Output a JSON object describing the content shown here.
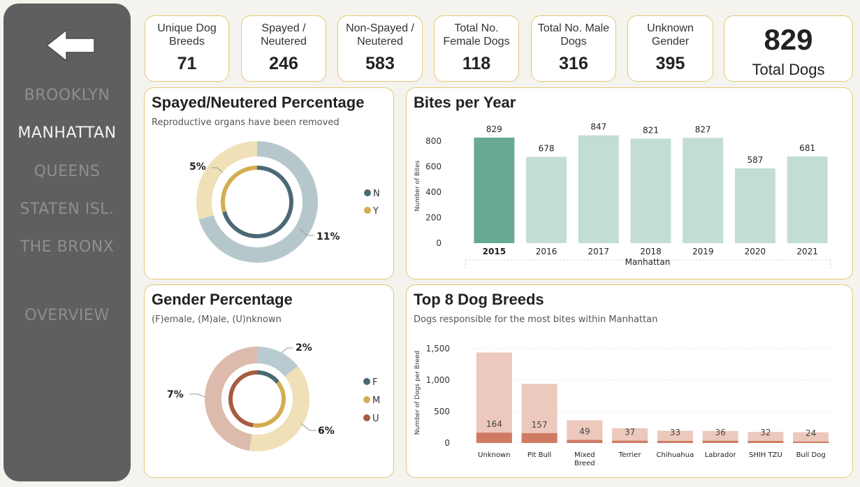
{
  "nav": {
    "back_icon": "left-arrow-icon",
    "items": [
      {
        "label": "BROOKLYN",
        "active": false
      },
      {
        "label": "MANHATTAN",
        "active": true
      },
      {
        "label": "QUEENS",
        "active": false
      },
      {
        "label": "STATEN ISL.",
        "active": false
      },
      {
        "label": "THE BRONX",
        "active": false
      },
      {
        "label": "OVERVIEW",
        "active": false
      }
    ]
  },
  "kpis": [
    {
      "label": "Unique Dog Breeds",
      "value": "71"
    },
    {
      "label": "Spayed / Neutered",
      "value": "246"
    },
    {
      "label": "Non-Spayed / Neutered",
      "value": "583"
    },
    {
      "label": "Total No. Female Dogs",
      "value": "118"
    },
    {
      "label": "Total No. Male Dogs",
      "value": "316"
    },
    {
      "label": "Unknown Gender",
      "value": "395"
    }
  ],
  "total": {
    "value": "829",
    "label": "Total Dogs"
  },
  "colors": {
    "accent_border": "#e2c978",
    "bar_highlight": "#67a995",
    "bar_normal": "#c2ddd5",
    "breed_total": "#ecc8bd",
    "breed_count": "#cf7b64",
    "donut_n": "#4b6875",
    "donut_y": "#d3ae50",
    "donut_u": "#a65c41"
  },
  "chart_data": [
    {
      "type": "pie",
      "title": "Spayed/Neutered Percentage",
      "subtitle": "Reproductive organs have been removed",
      "categories": [
        "N",
        "Y"
      ],
      "values": [
        583,
        246
      ],
      "annotations": [
        "11%",
        "5%"
      ]
    },
    {
      "type": "bar",
      "title": "Bites per Year",
      "categories": [
        "2015",
        "2016",
        "2017",
        "2018",
        "2019",
        "2020",
        "2021"
      ],
      "values": [
        829,
        678,
        847,
        821,
        827,
        587,
        681
      ],
      "data_labels": [
        "829",
        "678",
        "847",
        "821",
        "827",
        "587",
        "681"
      ],
      "highlight": "2015",
      "xlabel": "Manhattan",
      "ylabel": "Number of Bites",
      "yticks": [
        "0",
        "200",
        "400",
        "600",
        "800"
      ],
      "ylim": [
        0,
        900
      ]
    },
    {
      "type": "pie",
      "title": "Gender Percentage",
      "subtitle": "(F)emale, (M)ale, (U)nknown",
      "categories": [
        "F",
        "M",
        "U"
      ],
      "values": [
        118,
        316,
        395
      ],
      "annotations": [
        "2%",
        "6%",
        "7%"
      ]
    },
    {
      "type": "bar",
      "title": "Top 8 Dog Breeds",
      "subtitle": "Dogs responsible for the most bites within Manhattan",
      "categories": [
        "Unknown",
        "Pit Bull",
        "Mixed Breed",
        "Terrier",
        "Chihuahua",
        "Labrador",
        "SHIH TZU",
        "Bull Dog"
      ],
      "series": [
        {
          "values": [
            1440,
            940,
            360,
            235,
            195,
            190,
            175,
            170
          ]
        },
        {
          "values": [
            164,
            157,
            49,
            37,
            33,
            36,
            32,
            24
          ]
        }
      ],
      "data_labels": [
        "164",
        "157",
        "49",
        "37",
        "33",
        "36",
        "32",
        "24"
      ],
      "ylabel": "Number of Dogs per Breed",
      "yticks": [
        "0",
        "500",
        "1,000",
        "1,500"
      ],
      "ylim": [
        0,
        1600
      ]
    }
  ]
}
